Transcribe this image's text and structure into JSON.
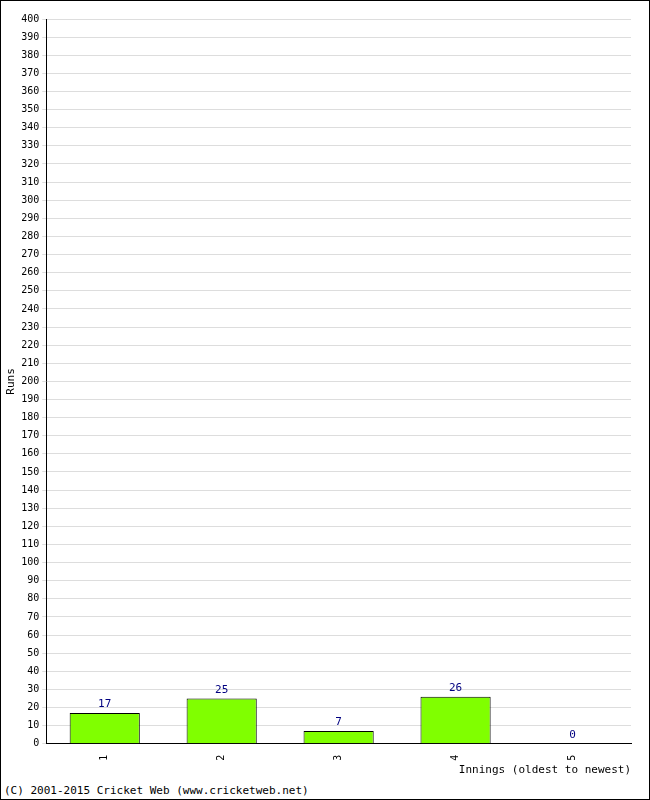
{
  "chart_data": {
    "type": "bar",
    "categories": [
      "1",
      "2",
      "3",
      "4",
      "5"
    ],
    "values": [
      17,
      25,
      7,
      26,
      0
    ],
    "color": "#80ff00",
    "x_label": "Innings (oldest to newest)",
    "y_label": "Runs",
    "ylim": [
      0,
      400
    ],
    "yticks": [
      0,
      10,
      20,
      30,
      40,
      50,
      60,
      70,
      80,
      90,
      100,
      110,
      120,
      130,
      140,
      150,
      160,
      170,
      180,
      190,
      200,
      210,
      220,
      230,
      240,
      250,
      260,
      270,
      280,
      290,
      300,
      310,
      320,
      330,
      340,
      350,
      360,
      370,
      380,
      390,
      400
    ],
    "grid": true,
    "data_labels": true,
    "annotations": [
      "(C) 2001-2015 Cricket Web (www.cricketweb.net)"
    ]
  }
}
